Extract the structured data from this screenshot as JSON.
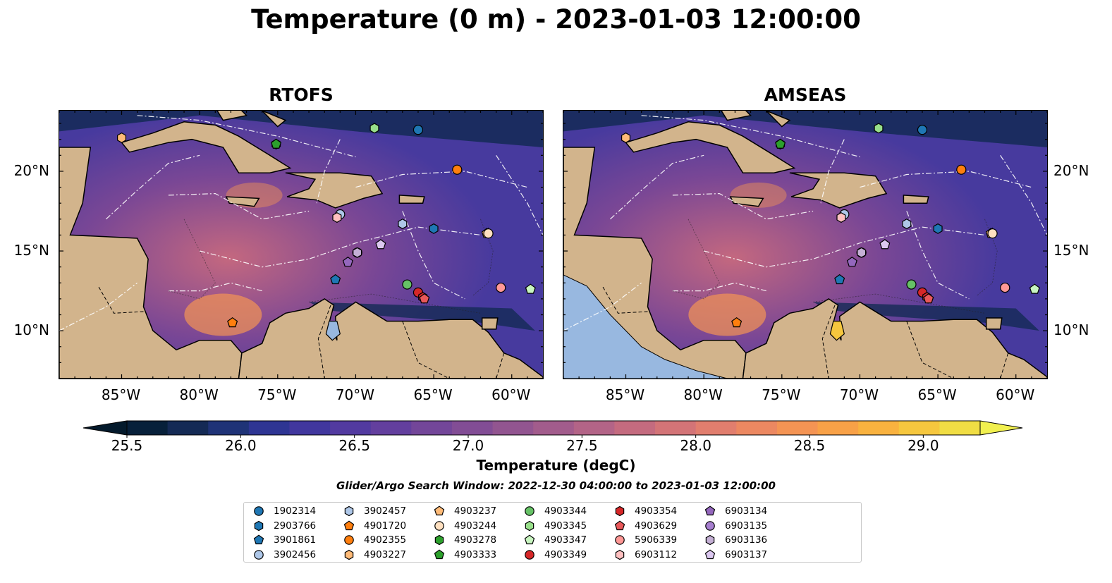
{
  "title": "Temperature (0 m) - 2023-01-03 12:00:00",
  "panels": [
    {
      "title": "RTOFS",
      "y_labels_side": "left"
    },
    {
      "title": "AMSEAS",
      "y_labels_side": "right"
    }
  ],
  "axes": {
    "lon_labels": [
      "85°W",
      "80°W",
      "75°W",
      "70°W",
      "65°W",
      "60°W"
    ],
    "lat_labels": [
      "20°N",
      "15°N",
      "10°N"
    ]
  },
  "colorbar": {
    "label": "Temperature (degC)",
    "ticks": [
      "25.5",
      "26.0",
      "26.5",
      "27.0",
      "27.5",
      "28.0",
      "28.5",
      "29.0"
    ],
    "min": 25.5,
    "max": 29.25,
    "extend": "both",
    "colors": [
      "#07203a",
      "#142a55",
      "#1f3377",
      "#2e3593",
      "#41379e",
      "#523aa0",
      "#633f9e",
      "#734699",
      "#824d95",
      "#925590",
      "#a25c8c",
      "#b36487",
      "#c46b7f",
      "#d37477",
      "#e17e6e",
      "#ec8861",
      "#f49454",
      "#f8a147",
      "#f9b23f",
      "#f6c73e",
      "#f0dd44"
    ],
    "overflow_low": "#041a2c",
    "overflow_high": "#f1f04f"
  },
  "search_window": "Glider/Argo Search Window: 2022-12-30 04:00:00 to 2023-01-03 12:00:00",
  "legend": [
    {
      "id": "1902314",
      "color": "#1f77b4",
      "marker": "circle"
    },
    {
      "id": "2903766",
      "color": "#1f77b4",
      "marker": "hexagon"
    },
    {
      "id": "3901861",
      "color": "#1f77b4",
      "marker": "pentagon"
    },
    {
      "id": "3902456",
      "color": "#aec7e8",
      "marker": "circle"
    },
    {
      "id": "3902457",
      "color": "#aec7e8",
      "marker": "hexagon"
    },
    {
      "id": "4901720",
      "color": "#ff7f0e",
      "marker": "pentagon"
    },
    {
      "id": "4902355",
      "color": "#ff7f0e",
      "marker": "circle"
    },
    {
      "id": "4903227",
      "color": "#ffbb78",
      "marker": "hexagon"
    },
    {
      "id": "4903237",
      "color": "#ffbb78",
      "marker": "pentagon"
    },
    {
      "id": "4903244",
      "color": "#ffe0c0",
      "marker": "circle"
    },
    {
      "id": "4903278",
      "color": "#2ca02c",
      "marker": "hexagon"
    },
    {
      "id": "4903333",
      "color": "#2ca02c",
      "marker": "pentagon"
    },
    {
      "id": "4903344",
      "color": "#66c266",
      "marker": "circle"
    },
    {
      "id": "4903345",
      "color": "#98df8a",
      "marker": "hexagon"
    },
    {
      "id": "4903347",
      "color": "#c8f5c0",
      "marker": "pentagon"
    },
    {
      "id": "4903349",
      "color": "#d62728",
      "marker": "circle"
    },
    {
      "id": "4903354",
      "color": "#d62728",
      "marker": "hexagon"
    },
    {
      "id": "4903629",
      "color": "#e8585a",
      "marker": "pentagon"
    },
    {
      "id": "5906339",
      "color": "#ff9896",
      "marker": "circle"
    },
    {
      "id": "6903112",
      "color": "#ffc0c0",
      "marker": "hexagon"
    },
    {
      "id": "6903134",
      "color": "#9467bd",
      "marker": "pentagon"
    },
    {
      "id": "6903135",
      "color": "#a77fd0",
      "marker": "circle"
    },
    {
      "id": "6903136",
      "color": "#c5b0d5",
      "marker": "hexagon"
    },
    {
      "id": "6903137",
      "color": "#dcc8f0",
      "marker": "pentagon"
    }
  ],
  "floats": [
    {
      "id": "1902314",
      "lon": -66.0,
      "lat": 22.6
    },
    {
      "id": "2903766",
      "lon": -65.0,
      "lat": 16.4
    },
    {
      "id": "3901861",
      "lon": -71.3,
      "lat": 13.2
    },
    {
      "id": "3902456",
      "lon": -71.0,
      "lat": 17.3
    },
    {
      "id": "3902457",
      "lon": -67.0,
      "lat": 16.7
    },
    {
      "id": "4901720",
      "lon": -77.9,
      "lat": 10.5
    },
    {
      "id": "4902355",
      "lon": -63.5,
      "lat": 20.1
    },
    {
      "id": "4903227",
      "lon": -85.0,
      "lat": 22.1
    },
    {
      "id": "4903237",
      "lon": -61.6,
      "lat": 16.1
    },
    {
      "id": "4903244",
      "lon": -61.5,
      "lat": 16.1
    },
    {
      "id": "4903278",
      "lon": -75.1,
      "lat": 21.7
    },
    {
      "id": "4903333",
      "lon": -75.1,
      "lat": 21.7
    },
    {
      "id": "4903344",
      "lon": -66.7,
      "lat": 12.9
    },
    {
      "id": "4903345",
      "lon": -68.8,
      "lat": 22.7
    },
    {
      "id": "4903347",
      "lon": -58.8,
      "lat": 12.6
    },
    {
      "id": "4903349",
      "lon": -66.0,
      "lat": 12.4
    },
    {
      "id": "4903354",
      "lon": -65.7,
      "lat": 12.1
    },
    {
      "id": "4903629",
      "lon": -65.6,
      "lat": 12.0
    },
    {
      "id": "5906339",
      "lon": -60.7,
      "lat": 12.7
    },
    {
      "id": "6903112",
      "lon": -71.2,
      "lat": 17.1
    },
    {
      "id": "6903134",
      "lon": -70.5,
      "lat": 14.3
    },
    {
      "id": "6903135",
      "lon": -69.9,
      "lat": 14.9
    },
    {
      "id": "6903136",
      "lon": -69.9,
      "lat": 14.9
    },
    {
      "id": "6903137",
      "lon": -68.4,
      "lat": 15.4
    }
  ],
  "map_colors": {
    "land": "#d2b48c",
    "lake": "#98b8e0",
    "ocean_warm": "#c4687f",
    "ocean_mid": "#7a4795",
    "ocean_cool": "#473a9e",
    "ocean_cold": "#142a55",
    "hot": "#f49454",
    "hottest": "#f6c73e"
  }
}
